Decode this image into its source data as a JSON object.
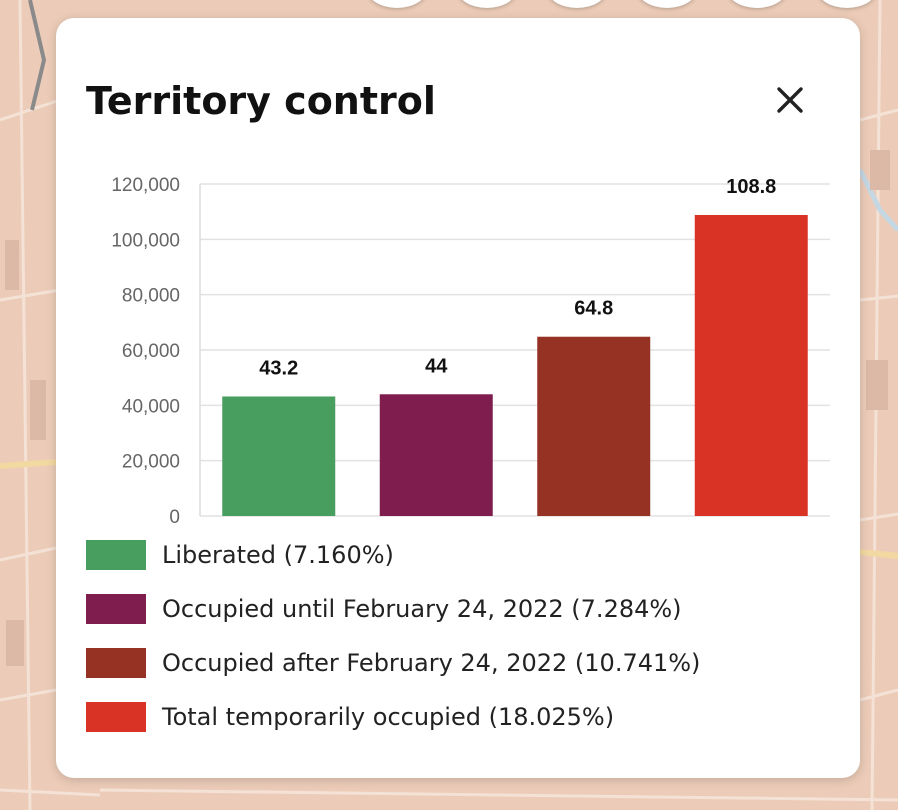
{
  "panel": {
    "title": "Territory control",
    "close_icon": "close-icon"
  },
  "colors": {
    "liberated": "#489e5e",
    "occupied_until": "#7f1d4e",
    "occupied_after": "#953224",
    "total": "#d93325"
  },
  "legend": [
    {
      "label": "Liberated (7.160%)",
      "color": "#489e5e"
    },
    {
      "label": "Occupied until February 24, 2022 (7.284%)",
      "color": "#7f1d4e"
    },
    {
      "label": "Occupied after February 24, 2022 (10.741%)",
      "color": "#953224"
    },
    {
      "label": "Total temporarily occupied (18.025%)",
      "color": "#d93325"
    }
  ],
  "chart_data": {
    "type": "bar",
    "categories": [
      "",
      "",
      "",
      ""
    ],
    "values": [
      43200,
      44000,
      64800,
      108800
    ],
    "data_labels": [
      "43.2",
      "44",
      "64.8",
      "108.8"
    ],
    "colors": [
      "#489e5e",
      "#7f1d4e",
      "#953224",
      "#d93325"
    ],
    "y_ticks": [
      0,
      20000,
      40000,
      60000,
      80000,
      100000,
      120000
    ],
    "y_tick_labels": [
      "0",
      "20,000",
      "40,000",
      "60,000",
      "80,000",
      "100,000",
      "120,000"
    ],
    "ylim": [
      0,
      120000
    ],
    "grid": true,
    "legend": "bottom"
  }
}
